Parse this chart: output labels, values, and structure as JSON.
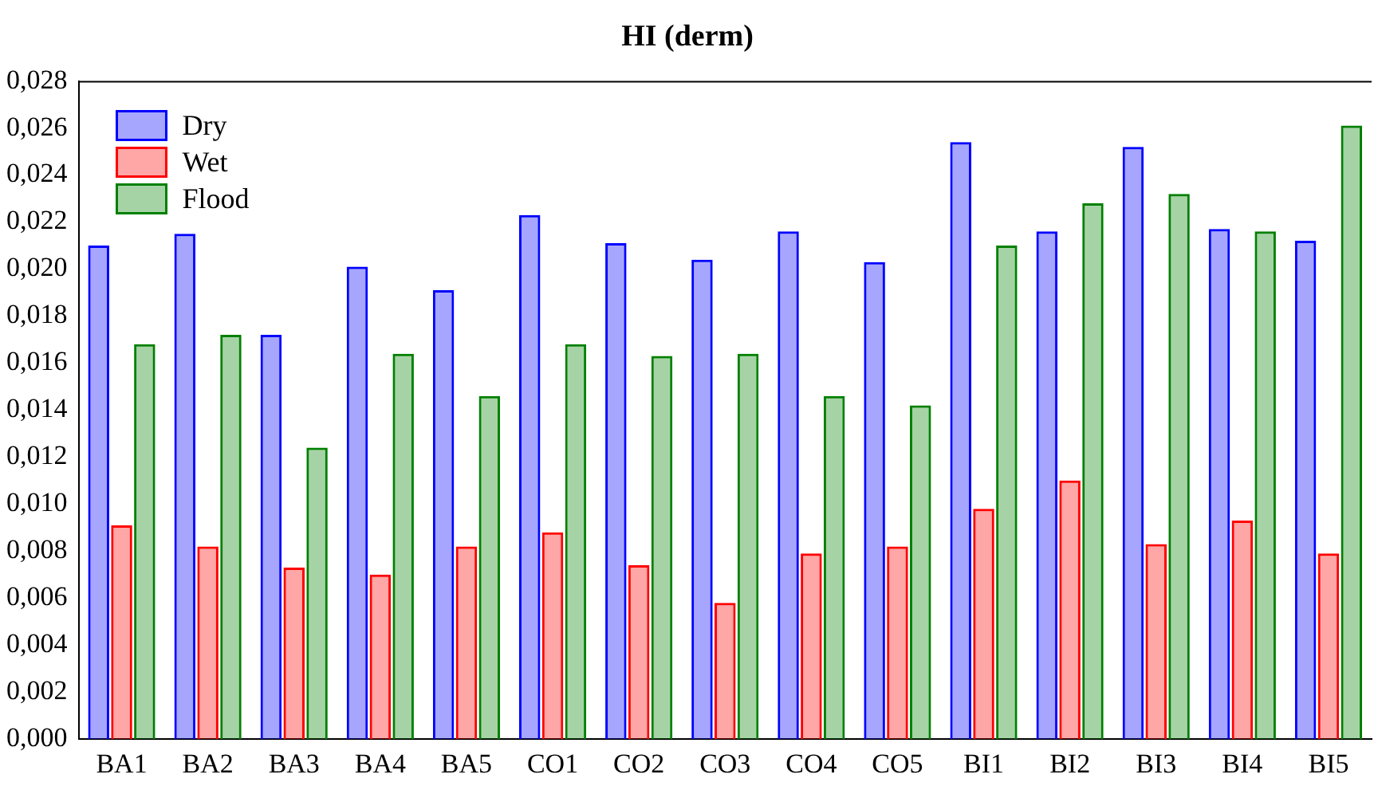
{
  "chart_data": {
    "type": "bar",
    "title": "HI (derm)",
    "categories": [
      "BA1",
      "BA2",
      "BA3",
      "BA4",
      "BA5",
      "CO1",
      "CO2",
      "CO3",
      "CO4",
      "CO5",
      "BI1",
      "BI2",
      "BI3",
      "BI4",
      "BI5"
    ],
    "series": [
      {
        "name": "Dry",
        "color": "#0000ff",
        "values": [
          0.021,
          0.0215,
          0.0172,
          0.0201,
          0.0191,
          0.0223,
          0.0211,
          0.0204,
          0.0216,
          0.0203,
          0.0254,
          0.0216,
          0.0252,
          0.0217,
          0.0212
        ]
      },
      {
        "name": "Wet",
        "color": "#ff0000",
        "values": [
          0.0091,
          0.0082,
          0.0073,
          0.007,
          0.0082,
          0.0088,
          0.0074,
          0.0058,
          0.0079,
          0.0082,
          0.0098,
          0.011,
          0.0083,
          0.0093,
          0.0079
        ]
      },
      {
        "name": "Flood",
        "color": "#008000",
        "values": [
          0.0168,
          0.0172,
          0.0124,
          0.0164,
          0.0146,
          0.0168,
          0.0163,
          0.0164,
          0.0146,
          0.0142,
          0.021,
          0.0228,
          0.0232,
          0.0216,
          0.0261
        ]
      }
    ],
    "ylim": [
      0,
      0.028
    ],
    "yticks": [
      {
        "value": 0,
        "label": "0,000"
      },
      {
        "value": 0.002,
        "label": "0,002"
      },
      {
        "value": 0.004,
        "label": "0,004"
      },
      {
        "value": 0.006,
        "label": "0,006"
      },
      {
        "value": 0.008,
        "label": "0,008"
      },
      {
        "value": 0.01,
        "label": "0,010"
      },
      {
        "value": 0.012,
        "label": "0,012"
      },
      {
        "value": 0.014,
        "label": "0,014"
      },
      {
        "value": 0.016,
        "label": "0,016"
      },
      {
        "value": 0.018,
        "label": "0,018"
      },
      {
        "value": 0.02,
        "label": "0,020"
      },
      {
        "value": 0.022,
        "label": "0,022"
      },
      {
        "value": 0.024,
        "label": "0,024"
      },
      {
        "value": 0.026,
        "label": "0,026"
      },
      {
        "value": 0.028,
        "label": "0,028"
      }
    ],
    "grid": false,
    "legend": "top left"
  }
}
